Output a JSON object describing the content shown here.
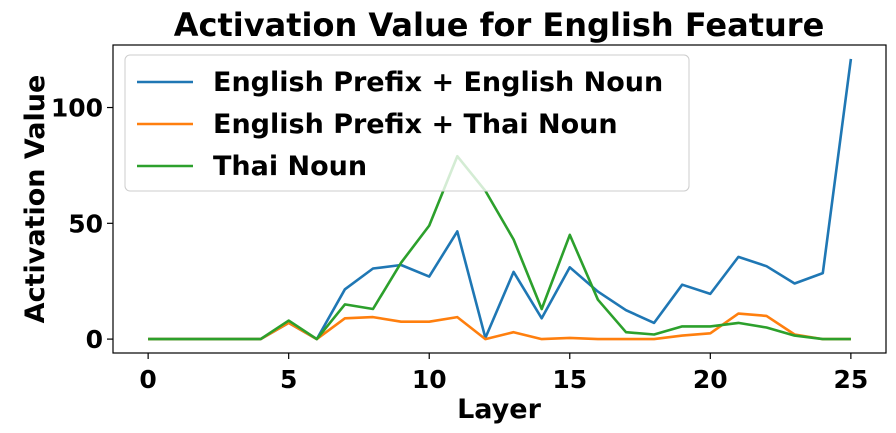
{
  "chart_data": {
    "type": "line",
    "title": "Activation Value for English Feature",
    "xlabel": "Layer",
    "ylabel": "Activation Value",
    "xlim": [
      -1.25,
      26.25
    ],
    "ylim": [
      -6,
      127
    ],
    "xticks": [
      0,
      5,
      10,
      15,
      20,
      25
    ],
    "yticks": [
      0,
      50,
      100
    ],
    "grid": false,
    "legend_position": "upper-left",
    "x": [
      0,
      1,
      2,
      3,
      4,
      5,
      6,
      7,
      8,
      9,
      10,
      11,
      12,
      13,
      14,
      15,
      16,
      17,
      18,
      19,
      20,
      21,
      22,
      23,
      24,
      25
    ],
    "series": [
      {
        "name": "English Prefix + English Noun",
        "color": "#1f77b4",
        "values": [
          0,
          0,
          0,
          0,
          0,
          7,
          0,
          21.5,
          30.5,
          32,
          27,
          46.5,
          0.5,
          29,
          9,
          31,
          20.5,
          12.5,
          7,
          23.5,
          19.5,
          35.5,
          31.5,
          24,
          28.5,
          121
        ]
      },
      {
        "name": "English Prefix + Thai Noun",
        "color": "#ff7f0e",
        "values": [
          0,
          0,
          0,
          0,
          0,
          7,
          0,
          9,
          9.5,
          7.5,
          7.5,
          9.5,
          0,
          3,
          0,
          0.5,
          0,
          0,
          0,
          1.5,
          2.5,
          11,
          10,
          2,
          0,
          0
        ]
      },
      {
        "name": "Thai Noun",
        "color": "#2ca02c",
        "values": [
          0,
          0,
          0,
          0,
          0,
          8,
          0,
          15,
          13,
          33,
          49,
          79,
          64,
          43,
          13,
          45,
          17,
          3,
          2,
          5.5,
          5.5,
          7,
          5,
          1.5,
          0,
          0
        ]
      }
    ]
  }
}
